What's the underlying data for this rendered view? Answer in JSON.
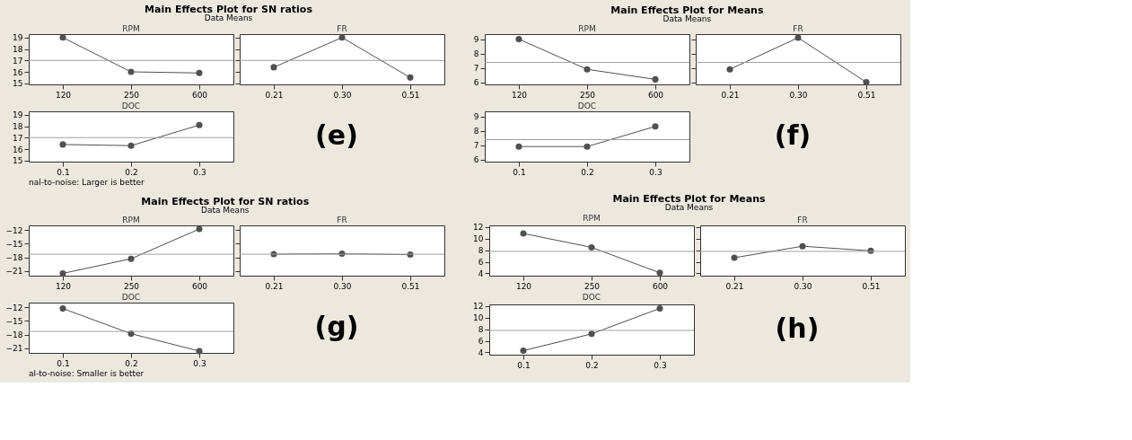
{
  "chart_data": [
    {
      "type": "line",
      "title": "Main Effects Plot for SN ratios",
      "subtitle": "Data Means",
      "xlabel": "RPM",
      "categories": [
        "120",
        "250",
        "600"
      ],
      "values": [
        19.0,
        16.0,
        15.9
      ],
      "color": "#505050",
      "marker": "circle",
      "ylim": [
        14.9,
        19.3
      ],
      "yticks": [
        15,
        16,
        17,
        18,
        19
      ],
      "ref_lines": [
        {
          "axis": "y",
          "value": 17.0,
          "color": "#a0a0a0"
        }
      ]
    },
    {
      "type": "line",
      "xlabel": "FR",
      "categories": [
        "0.21",
        "0.30",
        "0.51"
      ],
      "values": [
        16.4,
        19.0,
        15.5
      ],
      "color": "#505050",
      "marker": "circle",
      "ylim": [
        14.9,
        19.3
      ],
      "yticks": [
        15,
        16,
        17,
        18,
        19
      ],
      "ref_lines": [
        {
          "axis": "y",
          "value": 17.0,
          "color": "#a0a0a0"
        }
      ],
      "tick_labels": "x"
    },
    {
      "type": "line",
      "xlabel": "DOC",
      "categories": [
        "0.1",
        "0.2",
        "0.3"
      ],
      "values": [
        16.4,
        16.3,
        18.1
      ],
      "color": "#505050",
      "marker": "circle",
      "ylim": [
        14.9,
        19.3
      ],
      "yticks": [
        15,
        16,
        17,
        18,
        19
      ],
      "ref_lines": [
        {
          "axis": "y",
          "value": 17.0,
          "color": "#a0a0a0"
        }
      ],
      "annotations": [
        "(e)",
        "nal-to-noise: Larger is better"
      ]
    },
    {
      "type": "line",
      "title": "Main Effects Plot for Means",
      "subtitle": "Data Means",
      "xlabel": "RPM",
      "categories": [
        "120",
        "250",
        "600"
      ],
      "values": [
        9.0,
        6.9,
        6.2
      ],
      "color": "#505050",
      "marker": "circle",
      "ylim": [
        5.85,
        9.35
      ],
      "yticks": [
        6,
        7,
        8,
        9
      ],
      "ref_lines": [
        {
          "axis": "y",
          "value": 7.38,
          "color": "#a0a0a0"
        }
      ]
    },
    {
      "type": "line",
      "xlabel": "FR",
      "categories": [
        "0.21",
        "0.30",
        "0.51"
      ],
      "values": [
        6.9,
        9.1,
        6.0
      ],
      "color": "#505050",
      "marker": "circle",
      "ylim": [
        5.85,
        9.35
      ],
      "yticks": [
        6,
        7,
        8,
        9
      ],
      "ref_lines": [
        {
          "axis": "y",
          "value": 7.38,
          "color": "#a0a0a0"
        }
      ],
      "tick_labels": "x"
    },
    {
      "type": "line",
      "xlabel": "DOC",
      "categories": [
        "0.1",
        "0.2",
        "0.3"
      ],
      "values": [
        6.9,
        6.9,
        8.3
      ],
      "color": "#505050",
      "marker": "circle",
      "ylim": [
        5.85,
        9.35
      ],
      "yticks": [
        6,
        7,
        8,
        9
      ],
      "ref_lines": [
        {
          "axis": "y",
          "value": 7.38,
          "color": "#a0a0a0"
        }
      ],
      "annotations": [
        "(f)"
      ]
    },
    {
      "type": "line",
      "title": "Main Effects Plot for SN ratios",
      "subtitle": "Data Means",
      "xlabel": "RPM",
      "categories": [
        "120",
        "250",
        "600"
      ],
      "values": [
        -21.5,
        -18.3,
        -11.8
      ],
      "color": "#505050",
      "marker": "circle",
      "ylim": [
        -22,
        -11
      ],
      "yticks": [
        -21,
        -18,
        -15,
        -12
      ],
      "ref_lines": [
        {
          "axis": "y",
          "value": -17.3,
          "color": "#a0a0a0"
        }
      ]
    },
    {
      "type": "line",
      "xlabel": "FR",
      "categories": [
        "0.21",
        "0.30",
        "0.51"
      ],
      "values": [
        -17.3,
        -17.2,
        -17.4
      ],
      "color": "#505050",
      "marker": "circle",
      "ylim": [
        -22,
        -11
      ],
      "yticks": [
        -21,
        -18,
        -15,
        -12
      ],
      "ref_lines": [
        {
          "axis": "y",
          "value": -17.3,
          "color": "#a0a0a0"
        }
      ],
      "tick_labels": "x"
    },
    {
      "type": "line",
      "xlabel": "DOC",
      "categories": [
        "0.1",
        "0.2",
        "0.3"
      ],
      "values": [
        -12.3,
        -17.8,
        -21.6
      ],
      "color": "#505050",
      "marker": "circle",
      "ylim": [
        -22,
        -11
      ],
      "yticks": [
        -21,
        -18,
        -15,
        -12
      ],
      "ref_lines": [
        {
          "axis": "y",
          "value": -17.3,
          "color": "#a0a0a0"
        }
      ],
      "annotations": [
        "(g)",
        "al-to-noise: Smaller is better"
      ]
    },
    {
      "type": "line",
      "title": "Main Effects Plot for Means",
      "subtitle": "Data Means",
      "xlabel": "RPM",
      "categories": [
        "120",
        "250",
        "600"
      ],
      "values": [
        10.9,
        8.5,
        4.1
      ],
      "color": "#505050",
      "marker": "circle",
      "ylim": [
        3.6,
        12.3
      ],
      "yticks": [
        4,
        6,
        8,
        10,
        12
      ],
      "ref_lines": [
        {
          "axis": "y",
          "value": 7.8,
          "color": "#a0a0a0"
        }
      ]
    },
    {
      "type": "line",
      "xlabel": "FR",
      "categories": [
        "0.21",
        "0.30",
        "0.51"
      ],
      "values": [
        6.7,
        8.7,
        7.9
      ],
      "color": "#505050",
      "marker": "circle",
      "ylim": [
        3.6,
        12.3
      ],
      "yticks": [
        4,
        6,
        8,
        10,
        12
      ],
      "ref_lines": [
        {
          "axis": "y",
          "value": 7.8,
          "color": "#a0a0a0"
        }
      ],
      "tick_labels": "x"
    },
    {
      "type": "line",
      "xlabel": "DOC",
      "categories": [
        "0.1",
        "0.2",
        "0.3"
      ],
      "values": [
        4.3,
        7.2,
        11.6
      ],
      "color": "#505050",
      "marker": "circle",
      "ylim": [
        3.6,
        12.3
      ],
      "yticks": [
        4,
        6,
        8,
        10,
        12
      ],
      "ref_lines": [
        {
          "axis": "y",
          "value": 7.8,
          "color": "#a0a0a0"
        }
      ],
      "annotations": [
        "(h)"
      ]
    }
  ]
}
